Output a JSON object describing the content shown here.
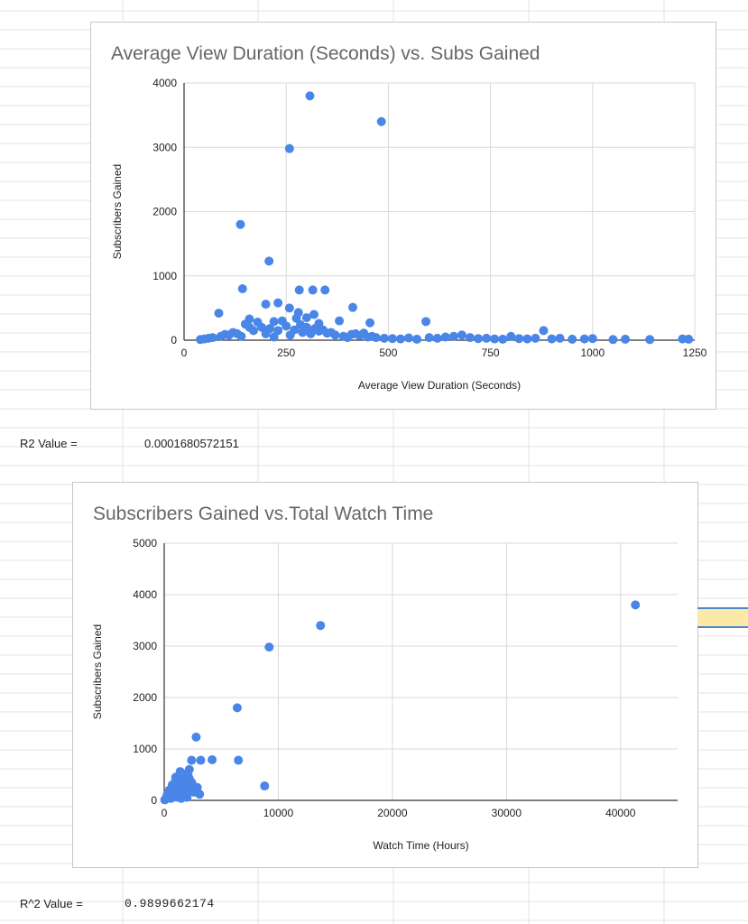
{
  "sheet": {
    "r2_label": "R2 Value =",
    "r2_value": "0.0001680572151",
    "r2b_label": "R^2 Value =",
    "r2b_value": "0.9899662174"
  },
  "colors": {
    "point": "#4a86e8",
    "grid": "#d9d9d9",
    "axis": "#333333",
    "title": "#666666",
    "selected_cell": "#fbe9a7"
  },
  "chart_data": [
    {
      "type": "scatter",
      "title": "Average View Duration (Seconds) vs. Subs Gained",
      "xlabel": "Average View Duration (Seconds)",
      "ylabel": "Subscribers Gained",
      "xlim": [
        0,
        1250
      ],
      "ylim": [
        0,
        4000
      ],
      "xticks": [
        0,
        250,
        500,
        750,
        1000,
        1250
      ],
      "yticks": [
        0,
        1000,
        2000,
        3000,
        4000
      ],
      "grid": true,
      "points": [
        [
          308,
          3800
        ],
        [
          483,
          3400
        ],
        [
          258,
          2980
        ],
        [
          138,
          1800
        ],
        [
          208,
          1230
        ],
        [
          143,
          800
        ],
        [
          282,
          780
        ],
        [
          315,
          780
        ],
        [
          345,
          780
        ],
        [
          413,
          510
        ],
        [
          85,
          420
        ],
        [
          200,
          560
        ],
        [
          230,
          580
        ],
        [
          258,
          500
        ],
        [
          280,
          430
        ],
        [
          318,
          400
        ],
        [
          380,
          300
        ],
        [
          455,
          270
        ],
        [
          592,
          290
        ],
        [
          880,
          150
        ],
        [
          300,
          350
        ],
        [
          240,
          300
        ],
        [
          180,
          280
        ],
        [
          160,
          330
        ],
        [
          220,
          290
        ],
        [
          275,
          340
        ],
        [
          330,
          260
        ],
        [
          150,
          250
        ],
        [
          120,
          120
        ],
        [
          100,
          90
        ],
        [
          60,
          30
        ],
        [
          40,
          10
        ],
        [
          50,
          20
        ],
        [
          70,
          40
        ],
        [
          90,
          60
        ],
        [
          110,
          80
        ],
        [
          130,
          100
        ],
        [
          170,
          150
        ],
        [
          190,
          200
        ],
        [
          210,
          180
        ],
        [
          230,
          150
        ],
        [
          250,
          220
        ],
        [
          270,
          160
        ],
        [
          290,
          120
        ],
        [
          310,
          100
        ],
        [
          330,
          140
        ],
        [
          350,
          110
        ],
        [
          370,
          80
        ],
        [
          390,
          60
        ],
        [
          410,
          90
        ],
        [
          430,
          70
        ],
        [
          450,
          50
        ],
        [
          470,
          40
        ],
        [
          490,
          30
        ],
        [
          510,
          25
        ],
        [
          530,
          20
        ],
        [
          550,
          35
        ],
        [
          570,
          15
        ],
        [
          600,
          40
        ],
        [
          620,
          30
        ],
        [
          640,
          50
        ],
        [
          660,
          60
        ],
        [
          680,
          80
        ],
        [
          700,
          40
        ],
        [
          720,
          25
        ],
        [
          740,
          30
        ],
        [
          760,
          20
        ],
        [
          780,
          15
        ],
        [
          800,
          60
        ],
        [
          820,
          25
        ],
        [
          840,
          20
        ],
        [
          860,
          30
        ],
        [
          900,
          20
        ],
        [
          920,
          30
        ],
        [
          950,
          15
        ],
        [
          980,
          20
        ],
        [
          1000,
          25
        ],
        [
          1050,
          10
        ],
        [
          1080,
          15
        ],
        [
          1140,
          10
        ],
        [
          1220,
          20
        ],
        [
          1235,
          15
        ],
        [
          140,
          60
        ],
        [
          160,
          200
        ],
        [
          200,
          100
        ],
        [
          220,
          50
        ],
        [
          260,
          80
        ],
        [
          285,
          240
        ],
        [
          300,
          200
        ],
        [
          320,
          180
        ],
        [
          340,
          160
        ],
        [
          360,
          120
        ],
        [
          400,
          40
        ],
        [
          420,
          100
        ],
        [
          440,
          110
        ],
        [
          460,
          60
        ]
      ]
    },
    {
      "type": "scatter",
      "title": "Subscribers Gained vs.Total Watch Time",
      "xlabel": "Watch Time (Hours)",
      "ylabel": "Subscribers Gained",
      "xlim": [
        0,
        45000
      ],
      "ylim": [
        0,
        5000
      ],
      "xticks": [
        0,
        10000,
        20000,
        30000,
        40000
      ],
      "yticks": [
        0,
        1000,
        2000,
        3000,
        4000,
        5000
      ],
      "grid": true,
      "points": [
        [
          41300,
          3800
        ],
        [
          13700,
          3400
        ],
        [
          9200,
          2980
        ],
        [
          6400,
          1800
        ],
        [
          2800,
          1230
        ],
        [
          6500,
          780
        ],
        [
          8800,
          280
        ],
        [
          4200,
          790
        ],
        [
          3200,
          780
        ],
        [
          2400,
          780
        ],
        [
          2200,
          600
        ],
        [
          1400,
          560
        ],
        [
          1700,
          510
        ],
        [
          2100,
          480
        ],
        [
          2500,
          300
        ],
        [
          2900,
          250
        ],
        [
          3100,
          120
        ],
        [
          1000,
          380
        ],
        [
          1200,
          420
        ],
        [
          1500,
          350
        ],
        [
          1800,
          330
        ],
        [
          1100,
          290
        ],
        [
          900,
          250
        ],
        [
          800,
          200
        ],
        [
          700,
          180
        ],
        [
          600,
          150
        ],
        [
          500,
          120
        ],
        [
          400,
          100
        ],
        [
          300,
          80
        ],
        [
          200,
          50
        ],
        [
          150,
          30
        ],
        [
          100,
          20
        ],
        [
          50,
          10
        ],
        [
          1300,
          200
        ],
        [
          1600,
          180
        ],
        [
          1900,
          150
        ],
        [
          2000,
          220
        ],
        [
          2300,
          260
        ],
        [
          2600,
          160
        ],
        [
          1400,
          120
        ],
        [
          1700,
          90
        ],
        [
          2000,
          60
        ],
        [
          1100,
          150
        ],
        [
          900,
          100
        ],
        [
          1200,
          60
        ],
        [
          1500,
          40
        ],
        [
          1800,
          220
        ],
        [
          2100,
          300
        ],
        [
          700,
          300
        ],
        [
          1000,
          450
        ],
        [
          1300,
          480
        ],
        [
          1600,
          380
        ],
        [
          1900,
          400
        ],
        [
          2200,
          420
        ],
        [
          2400,
          350
        ],
        [
          2700,
          200
        ],
        [
          800,
          60
        ],
        [
          600,
          40
        ],
        [
          450,
          200
        ],
        [
          350,
          150
        ],
        [
          250,
          100
        ],
        [
          1200,
          250
        ]
      ]
    }
  ]
}
